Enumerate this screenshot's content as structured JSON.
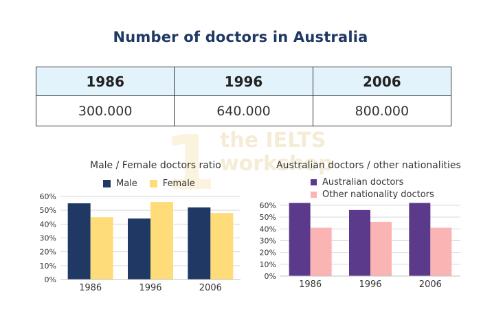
{
  "title": "Number of doctors in Australia",
  "table": {
    "headers": [
      "1986",
      "1996",
      "2006"
    ],
    "values": [
      "300.000",
      "640.000",
      "800.000"
    ]
  },
  "watermark": {
    "line1": "the IELTS",
    "line2": "workshop",
    "glyph": "1"
  },
  "chart_data": [
    {
      "type": "bar",
      "title": "Male / Female doctors ratio",
      "categories": [
        "1986",
        "1996",
        "2006"
      ],
      "series": [
        {
          "name": "Male",
          "color": "#1f3864",
          "values": [
            55,
            44,
            52
          ]
        },
        {
          "name": "Female",
          "color": "#fedc7a",
          "values": [
            45,
            56,
            48
          ]
        }
      ],
      "yticks": [
        "0%",
        "10%",
        "20%",
        "30%",
        "40%",
        "50%",
        "60%"
      ],
      "ylim": [
        0,
        60
      ],
      "grid": true,
      "legend": "top"
    },
    {
      "type": "bar",
      "title": "Australian doctors / other nationalities",
      "categories": [
        "1986",
        "1996",
        "2006"
      ],
      "series": [
        {
          "name": "Australian doctors",
          "color": "#5b3a8c",
          "values": [
            62,
            56,
            62
          ]
        },
        {
          "name": "Other nationality doctors",
          "color": "#fbb4b4",
          "values": [
            41,
            46,
            41
          ]
        }
      ],
      "yticks": [
        "0%",
        "10%",
        "20%",
        "30%",
        "40%",
        "50%",
        "60%"
      ],
      "ylim": [
        0,
        60
      ],
      "grid": true,
      "legend": "top"
    }
  ]
}
